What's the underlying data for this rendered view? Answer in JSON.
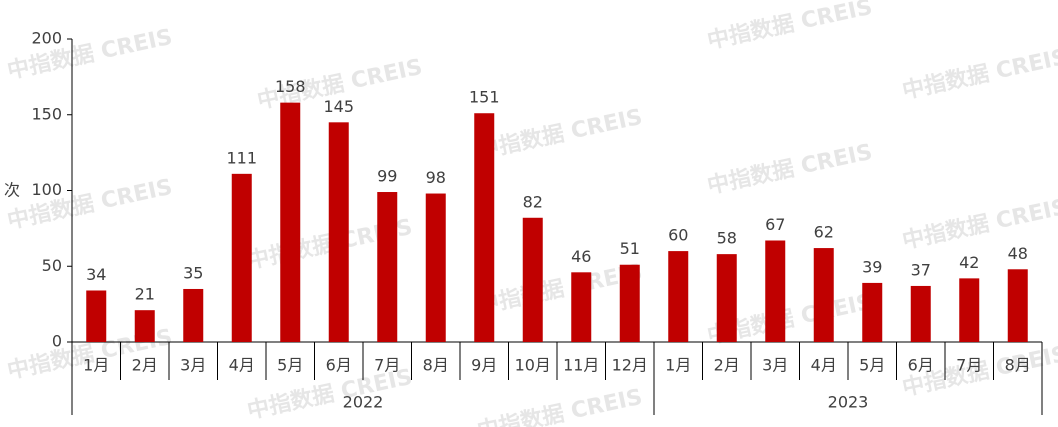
{
  "chart_data": {
    "type": "bar",
    "watermark": "中指数据 CREIS",
    "y_label": "次",
    "groups": [
      {
        "name": "2022",
        "categories": [
          "1月",
          "2月",
          "3月",
          "4月",
          "5月",
          "6月",
          "7月",
          "8月",
          "9月",
          "10月",
          "11月",
          "12月"
        ]
      },
      {
        "name": "2023",
        "categories": [
          "1月",
          "2月",
          "3月",
          "4月",
          "5月",
          "6月",
          "7月",
          "8月"
        ]
      }
    ],
    "values": [
      34,
      21,
      35,
      111,
      158,
      145,
      99,
      98,
      151,
      82,
      46,
      51,
      60,
      58,
      67,
      62,
      39,
      37,
      42,
      48
    ],
    "color": "#c00000",
    "ylim": [
      0,
      200
    ],
    "yticks": [
      0,
      50,
      100,
      150,
      200
    ]
  }
}
